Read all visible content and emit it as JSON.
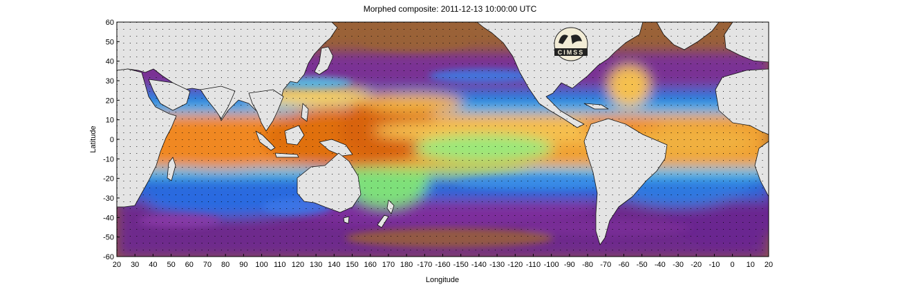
{
  "title": "Morphed composite: 2011-12-13 10:00:00 UTC",
  "axes": {
    "xlabel": "Longitude",
    "ylabel": "Latitude",
    "lat_ticks": [
      "60",
      "50",
      "40",
      "30",
      "20",
      "10",
      "0",
      "-10",
      "-20",
      "-30",
      "-40",
      "-50",
      "-60"
    ],
    "lon_ticks": [
      "20",
      "30",
      "40",
      "50",
      "60",
      "70",
      "80",
      "90",
      "100",
      "110",
      "120",
      "130",
      "140",
      "150",
      "160",
      "170",
      "180",
      "-170",
      "-160",
      "-150",
      "-140",
      "-130",
      "-120",
      "-110",
      "-100",
      "-90",
      "-80",
      "-70",
      "-60",
      "-50",
      "-40",
      "-30",
      "-20",
      "-10",
      "0",
      "10",
      "20"
    ]
  },
  "logo": {
    "text": "CIMSS"
  },
  "colors": {
    "land": "#e4e4e4",
    "dry_brown": "#a0683c",
    "purple": "#7a2a9a",
    "blue": "#2a6fe8",
    "cyan": "#35c8f0",
    "green": "#8fe870",
    "yellow": "#f5d060",
    "orange": "#f08a1c",
    "deep_orange": "#c85a10"
  }
}
